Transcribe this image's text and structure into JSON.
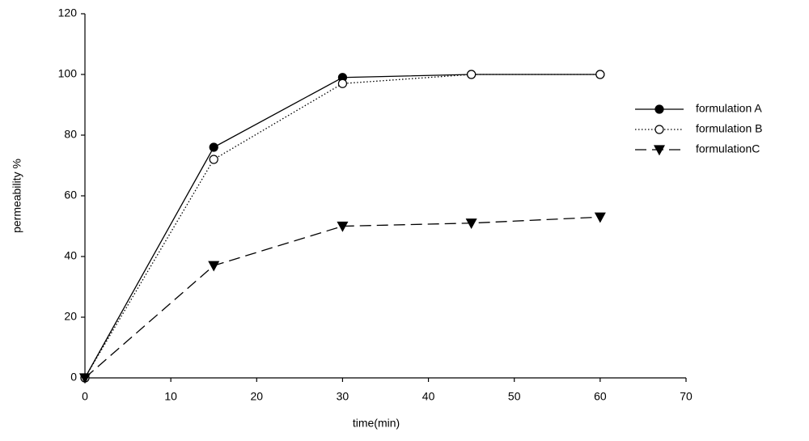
{
  "chart_data": {
    "type": "line",
    "x_label": "time(min)",
    "y_label": "permeability %",
    "x": [
      0,
      15,
      30,
      45,
      60
    ],
    "series": [
      {
        "name": "formulation A",
        "color": "#000000",
        "marker": "filled-circle",
        "dash": "solid",
        "values": [
          0,
          76,
          99,
          100,
          100
        ]
      },
      {
        "name": "formulation B",
        "color": "#000000",
        "marker": "open-circle",
        "dash": "dotted",
        "values": [
          0,
          72,
          97,
          100,
          100
        ]
      },
      {
        "name": "formulationC",
        "color": "#000000",
        "marker": "triangle-down",
        "dash": "dashed",
        "values": [
          0,
          37,
          50,
          51,
          53
        ]
      }
    ],
    "xlim": [
      0,
      70
    ],
    "xticks": [
      0,
      10,
      20,
      30,
      40,
      50,
      60,
      70
    ],
    "ylim": [
      0,
      120
    ],
    "yticks": [
      0,
      20,
      40,
      60,
      80,
      100,
      120
    ],
    "grid": false,
    "legend": "right"
  }
}
